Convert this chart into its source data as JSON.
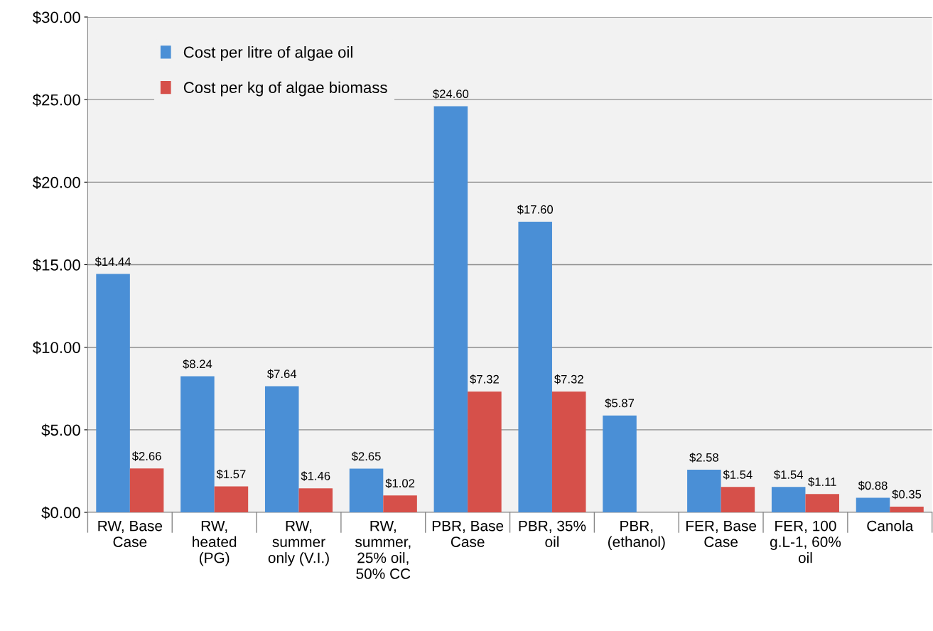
{
  "chart_data": {
    "type": "bar",
    "categories": [
      "RW, Base\nCase",
      "RW,\nheated\n(PG)",
      "RW,\nsummer\nonly (V.I.)",
      "RW,\nsummer,\n25% oil,\n50% CC",
      "PBR, Base\nCase",
      "PBR, 35%\noil",
      "PBR,\n(ethanol)",
      "FER, Base\nCase",
      "FER, 100\ng.L-1, 60%\noil",
      "Canola"
    ],
    "series": [
      {
        "name": "Cost per litre of algae oil",
        "color": "#4a8fd6",
        "values": [
          14.44,
          8.24,
          7.64,
          2.65,
          24.6,
          17.6,
          5.87,
          2.58,
          1.54,
          0.88
        ],
        "value_labels": [
          "$14.44",
          "$8.24",
          "$7.64",
          "$2.65",
          "$24.60",
          "$17.60",
          "$5.87",
          "$2.58",
          "$1.54",
          "$0.88"
        ]
      },
      {
        "name": "Cost per kg of algae biomass",
        "color": "#d6504a",
        "values": [
          2.66,
          1.57,
          1.46,
          1.02,
          7.32,
          7.32,
          null,
          1.54,
          1.11,
          0.35
        ],
        "value_labels": [
          "$2.66",
          "$1.57",
          "$1.46",
          "$1.02",
          "$7.32",
          "$7.32",
          null,
          "$1.54",
          "$1.11",
          "$0.35"
        ]
      }
    ],
    "ylim": [
      0,
      30
    ],
    "yticks": [
      {
        "value": 0,
        "label": "$0.00"
      },
      {
        "value": 5,
        "label": "$5.00"
      },
      {
        "value": 10,
        "label": "$10.00"
      },
      {
        "value": 15,
        "label": "$15.00"
      },
      {
        "value": 20,
        "label": "$20.00"
      },
      {
        "value": 25,
        "label": "$25.00"
      },
      {
        "value": 30,
        "label": "$30.00"
      }
    ],
    "grid": "y",
    "legend": "top left"
  }
}
